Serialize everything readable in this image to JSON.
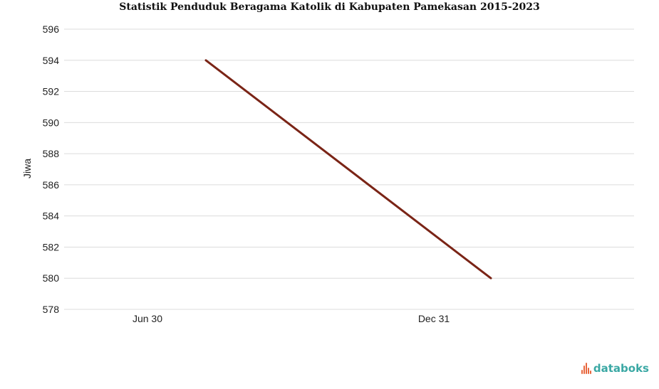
{
  "chart_data": {
    "type": "line",
    "title": "Statistik Penduduk Beragama Katolik di Kabupaten Pamekasan 2015-2023",
    "xlabel": "",
    "ylabel": "Jiwa",
    "categories": [
      "Jun 30",
      "Dec 31"
    ],
    "series": [
      {
        "x": [
          "Jun 30",
          "Dec 31"
        ],
        "values": [
          594,
          580
        ],
        "color": "#7a2416"
      }
    ],
    "ylim": [
      578,
      596
    ],
    "yticks": [
      578,
      580,
      582,
      584,
      586,
      588,
      590,
      592,
      594,
      596
    ],
    "grid": true,
    "legend": "none"
  },
  "brand": {
    "name": "databoks",
    "icon": "databoks-logo-icon",
    "color": "#3aa8a4",
    "icon_color": "#e8663d"
  }
}
